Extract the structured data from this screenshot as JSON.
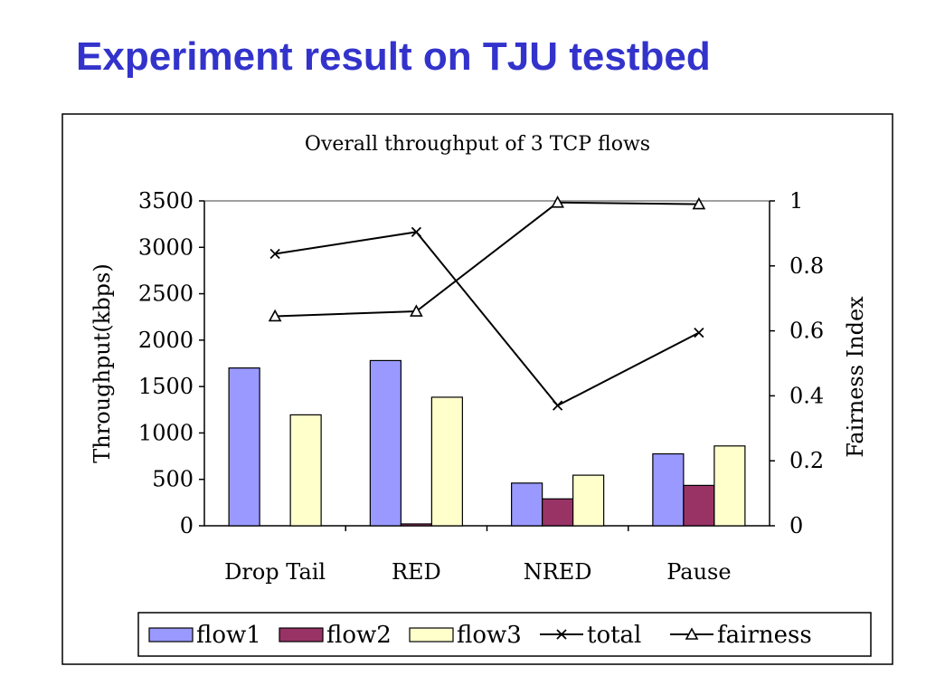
{
  "slide": {
    "title": "Experiment result on TJU testbed"
  },
  "chart_data": {
    "type": "bar",
    "title": "Overall throughput of 3 TCP flows",
    "categories": [
      "Drop Tail",
      "RED",
      "NRED",
      "Pause"
    ],
    "ylabel": "Throughput(kbps)",
    "y2label": "Fairness Index",
    "ylim": [
      0,
      3500
    ],
    "y2lim": [
      0,
      1
    ],
    "yticks": [
      "0",
      "500",
      "1000",
      "1500",
      "2000",
      "2500",
      "3000",
      "3500"
    ],
    "y2ticks": [
      "0",
      "0.2",
      "0.4",
      "0.6",
      "0.8",
      "1"
    ],
    "legend_position": "bottom",
    "series": [
      {
        "name": "flow1",
        "kind": "bar",
        "axis": "left",
        "color": "#9999ff",
        "values": [
          1700,
          1780,
          460,
          775
        ]
      },
      {
        "name": "flow2",
        "kind": "bar",
        "axis": "left",
        "color": "#993366",
        "values": [
          0,
          20,
          290,
          435
        ]
      },
      {
        "name": "flow3",
        "kind": "bar",
        "axis": "left",
        "color": "#ffffcc",
        "values": [
          1195,
          1385,
          545,
          860
        ]
      },
      {
        "name": "total",
        "kind": "line",
        "axis": "left",
        "marker": "x",
        "values": [
          2930,
          3165,
          1295,
          2080
        ]
      },
      {
        "name": "fairness",
        "kind": "line",
        "axis": "right",
        "marker": "triangle",
        "values": [
          0.645,
          0.66,
          0.995,
          0.99
        ]
      }
    ]
  }
}
